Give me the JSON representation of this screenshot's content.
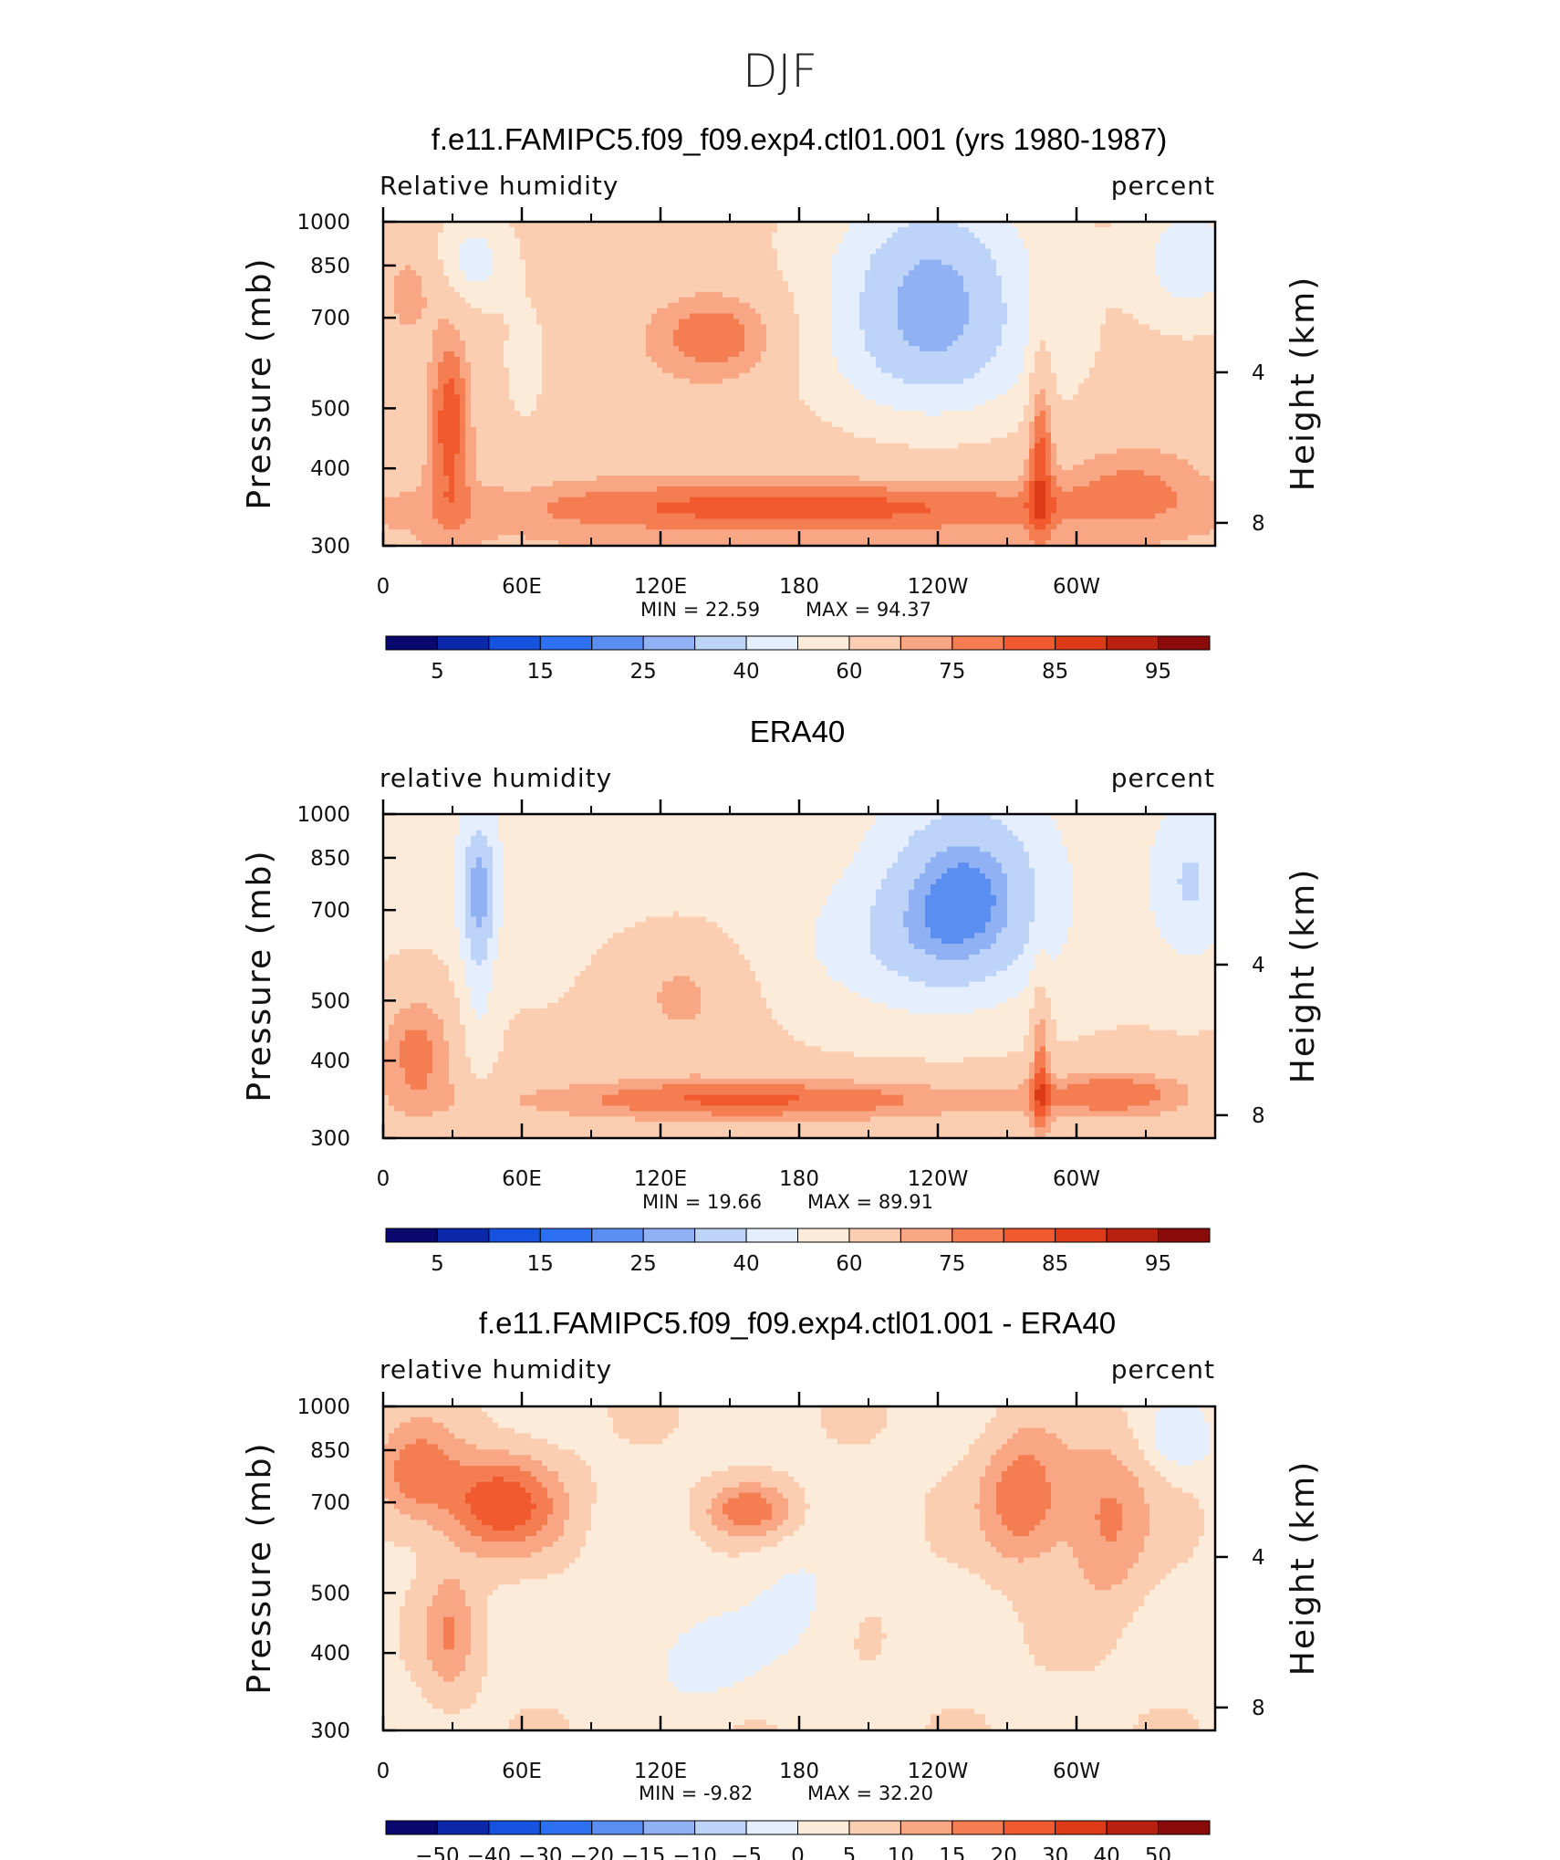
{
  "figure_title": "DJF",
  "colors": {
    "scale": [
      "#08086f",
      "#0a28a9",
      "#1552e0",
      "#2e70f2",
      "#5b8ef1",
      "#90b1f3",
      "#bed3f8",
      "#e4eefc",
      "#fdebd9",
      "#fbcdb1",
      "#f8a684",
      "#f57d52",
      "#f15a2e",
      "#dd3b18",
      "#b8210f",
      "#8a0c0a"
    ],
    "land": "#000000"
  },
  "chart_data": [
    {
      "type": "heatmap",
      "title": "f.e11.FAMIPC5.f09_f09.exp4.ctl01.001 (yrs 1980-1987)",
      "left_label": "Relative humidity",
      "right_label": "percent",
      "ylabel": "Pressure (mb)",
      "ylabel_right": "Height (km)",
      "y_ticks": [
        "300",
        "400",
        "500",
        "700",
        "850",
        "1000"
      ],
      "y_ticks_right": [
        "8",
        "4"
      ],
      "x_ticks": [
        "0",
        "60E",
        "120E",
        "180",
        "120W",
        "60W"
      ],
      "xlim": [
        0,
        360
      ],
      "ylim": [
        1000,
        300
      ],
      "min_text": "MIN =    22.59",
      "max_text": "MAX =    94.37",
      "colorbar_labels": [
        "5",
        "15",
        "25",
        "40",
        "60",
        "75",
        "85",
        "95"
      ],
      "field": "model"
    },
    {
      "type": "heatmap",
      "title": "ERA40",
      "left_label": "relative humidity",
      "right_label": "percent",
      "ylabel": "Pressure (mb)",
      "ylabel_right": "Height (km)",
      "y_ticks": [
        "300",
        "400",
        "500",
        "700",
        "850",
        "1000"
      ],
      "y_ticks_right": [
        "8",
        "4"
      ],
      "x_ticks": [
        "0",
        "60E",
        "120E",
        "180",
        "120W",
        "60W"
      ],
      "xlim": [
        0,
        360
      ],
      "ylim": [
        1000,
        300
      ],
      "min_text": "MIN =    19.66",
      "max_text": "MAX =    89.91",
      "colorbar_labels": [
        "5",
        "15",
        "25",
        "40",
        "60",
        "75",
        "85",
        "95"
      ],
      "field": "obs"
    },
    {
      "type": "heatmap",
      "title": "f.e11.FAMIPC5.f09_f09.exp4.ctl01.001 - ERA40",
      "left_label": "relative humidity",
      "right_label": "percent",
      "ylabel": "Pressure (mb)",
      "ylabel_right": "Height (km)",
      "y_ticks": [
        "300",
        "400",
        "500",
        "700",
        "850",
        "1000"
      ],
      "y_ticks_right": [
        "8",
        "4"
      ],
      "x_ticks": [
        "0",
        "60E",
        "120E",
        "180",
        "120W",
        "60W"
      ],
      "xlim": [
        0,
        360
      ],
      "ylim": [
        1000,
        300
      ],
      "min_text": "MIN =    -9.82",
      "max_text": "MAX =    32.20",
      "colorbar_labels": [
        "−50",
        "−40",
        "−30",
        "−20",
        "−15",
        "−10",
        "−5",
        "0",
        "5",
        "10",
        "15",
        "20",
        "30",
        "40",
        "50"
      ],
      "field": "diff"
    }
  ]
}
